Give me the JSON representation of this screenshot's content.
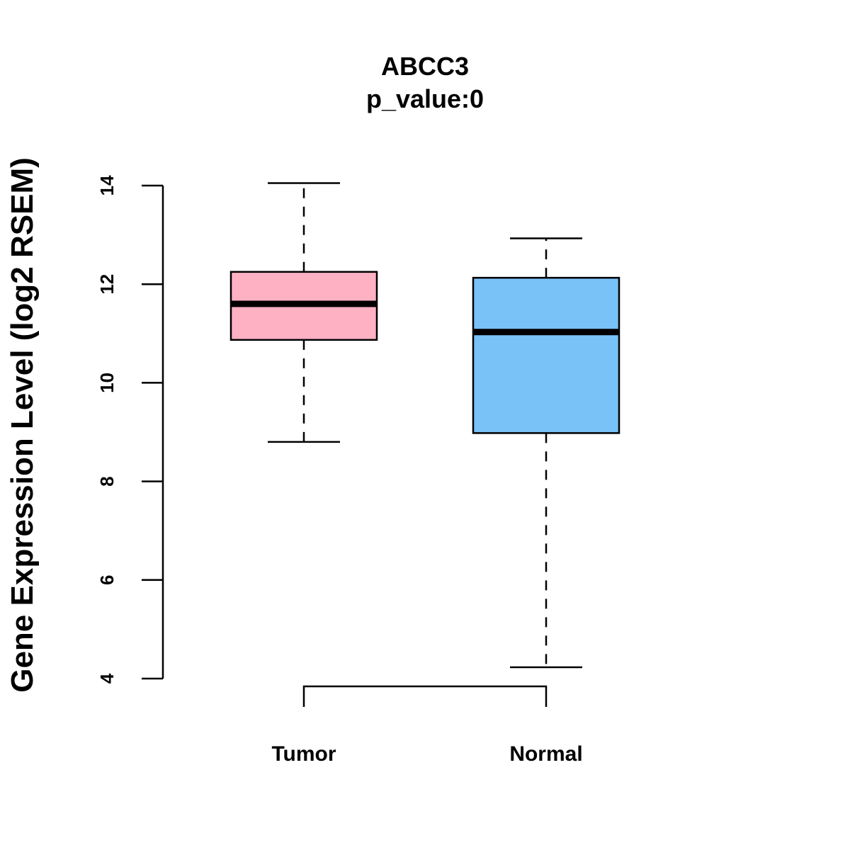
{
  "chart_data": {
    "type": "boxplot",
    "title": "ABCC3",
    "subtitle": "p_value:0",
    "ylabel": "Gene Expression Level (log2 RSEM)",
    "xlabel": "",
    "ylim": [
      4,
      14
    ],
    "yticks": [
      "4",
      "6",
      "8",
      "10",
      "12",
      "14"
    ],
    "categories": [
      "Tumor",
      "Normal"
    ],
    "boxes": [
      {
        "name": "Tumor",
        "min": 8.8,
        "q1": 10.87,
        "median": 11.6,
        "q3": 12.25,
        "max": 14.05,
        "color": "#ffb1c4"
      },
      {
        "name": "Normal",
        "min": 4.23,
        "q1": 8.98,
        "median": 11.03,
        "q3": 12.13,
        "max": 12.93,
        "color": "#79c2f8"
      }
    ],
    "bracket": {
      "from": "Tumor",
      "to": "Normal"
    }
  }
}
